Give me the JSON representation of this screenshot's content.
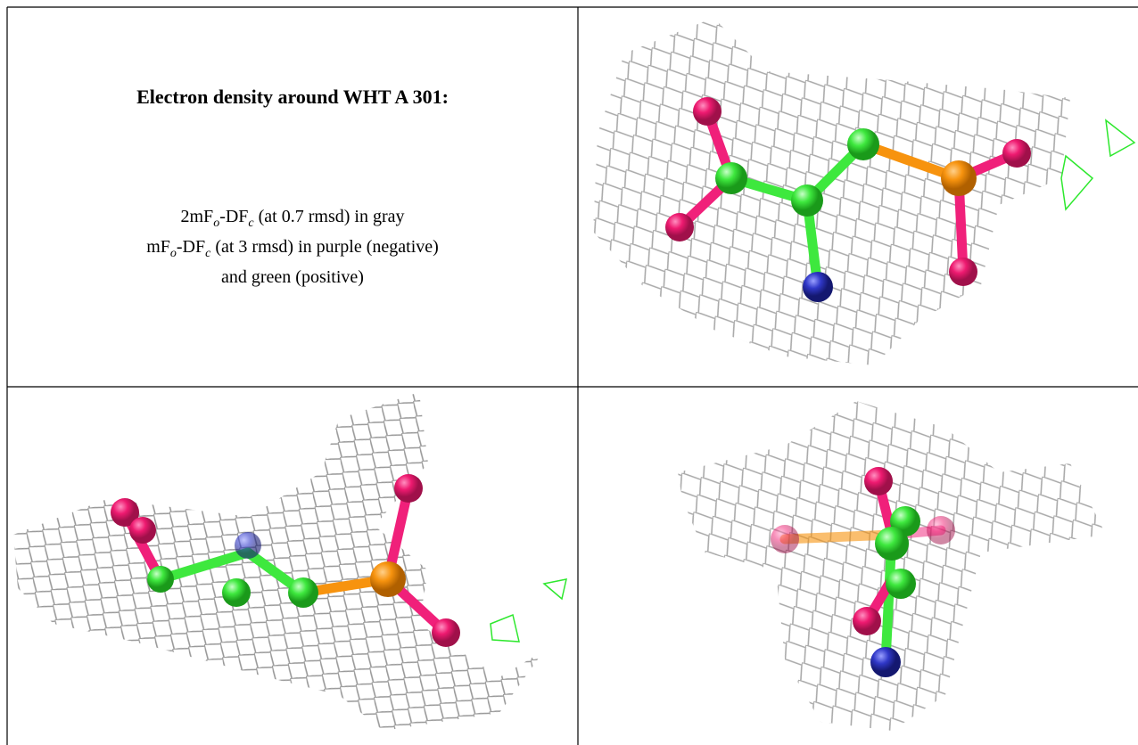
{
  "heading": "Electron density around WHT A 301:",
  "description": [
    [
      "2mF",
      "o",
      "-DF",
      "c",
      " (at 0.7 rmsd) in gray"
    ],
    [
      "mF",
      "o",
      "-DF",
      "c",
      " (at 3 rmsd) in purple (negative)"
    ],
    [
      "and green (positive)"
    ]
  ]
}
